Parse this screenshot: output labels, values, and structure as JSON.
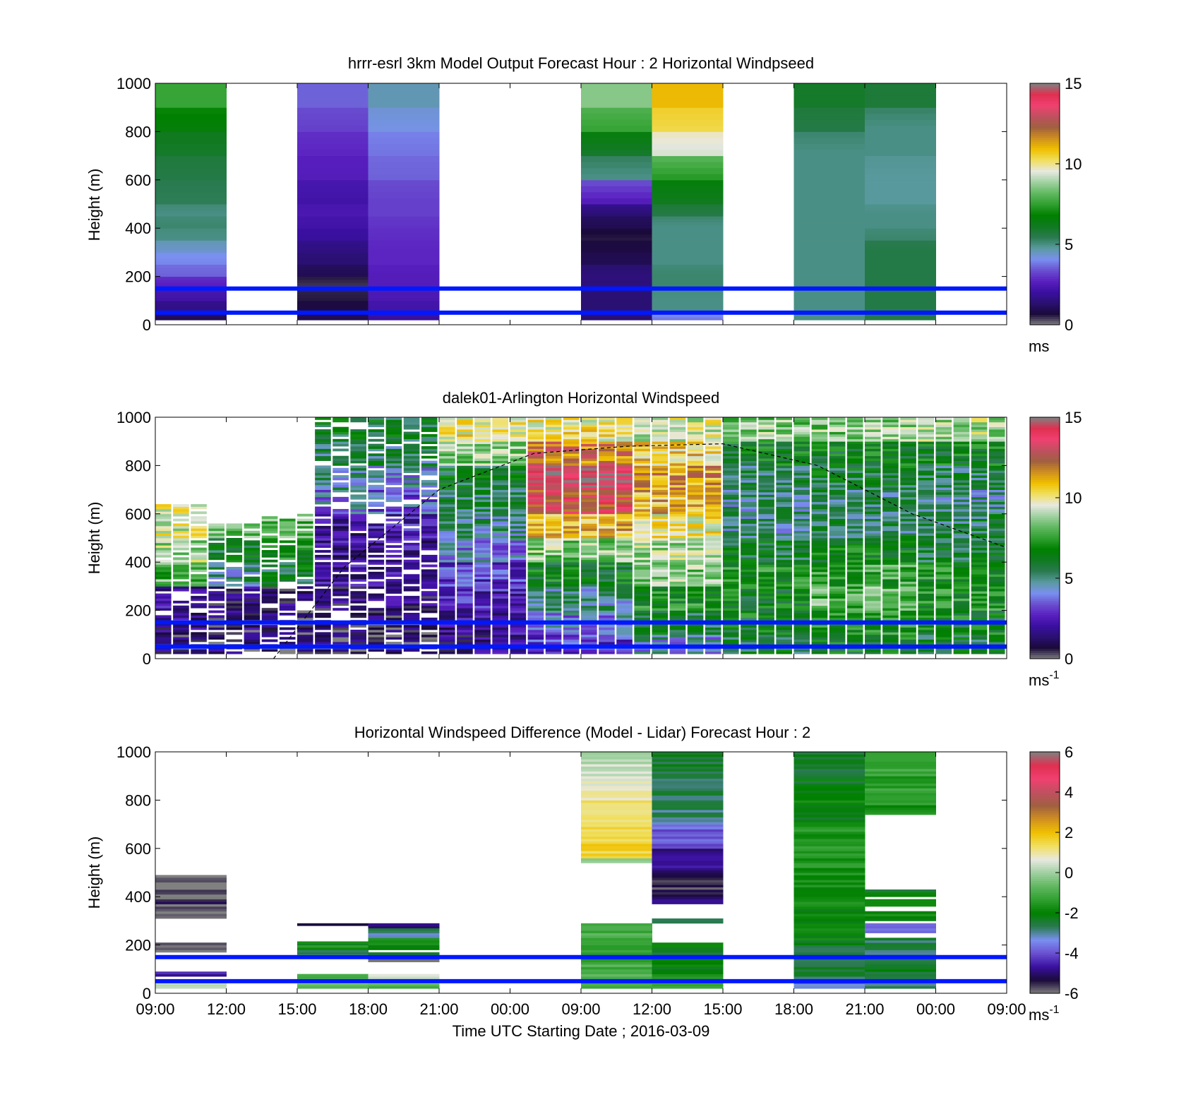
{
  "colors": {
    "windspeed_colormap": [
      "#808080",
      "#1a0a3a",
      "#2a1070",
      "#3a10a0",
      "#5a20c0",
      "#6a50d0",
      "#7a90f0",
      "#5a9aa0",
      "#2a7a50",
      "#107a20",
      "#008000",
      "#30a030",
      "#60b860",
      "#a0d0a0",
      "#e8e8e0",
      "#f0e060",
      "#f0c000",
      "#d09020",
      "#a06040",
      "#c05060",
      "#f04070",
      "#e03050",
      "#808080"
    ],
    "difference_colormap": [
      "#808080",
      "#1a0a3a",
      "#3a10a0",
      "#6a50d0",
      "#7a90f0",
      "#2a7a50",
      "#008000",
      "#30a030",
      "#60b860",
      "#a0d0a0",
      "#e8e8e0",
      "#f0e060",
      "#f0c000",
      "#d09020",
      "#a06040",
      "#c05060",
      "#f04070",
      "#e03050",
      "#808080"
    ],
    "reference_lines": "#0018ff",
    "overlay_curve": "#000000"
  },
  "shared": {
    "x_tick_labels": [
      "09:00",
      "12:00",
      "15:00",
      "18:00",
      "21:00",
      "00:00",
      "09:00",
      "12:00",
      "15:00",
      "18:00",
      "21:00",
      "00:00",
      "09:00"
    ],
    "x_label": "Time UTC  Starting Date ; 2016-03-09",
    "y_label": "Height (m)",
    "y_tick_labels": [
      "0",
      "200",
      "400",
      "600",
      "800",
      "1000"
    ]
  },
  "chart_data": [
    {
      "type": "heatmap",
      "title": "hrrr-esrl 3km Model Output   Forecast Hour : 2 Horizontal Windpseed",
      "ylabel": "Height (m)",
      "ylim": [
        0,
        1000
      ],
      "x_columns": 12,
      "reference_lines_m": [
        50,
        150
      ],
      "colorbar": {
        "ticks": [
          "0",
          "5",
          "10",
          "15"
        ],
        "range": [
          0,
          15
        ],
        "unit": "ms"
      },
      "value_grid_note": "columns = 3-hour model slots, values = windspeed (m/s) per height band",
      "bands_m": [
        [
          20,
          50
        ],
        [
          50,
          100
        ],
        [
          100,
          150
        ],
        [
          150,
          200
        ],
        [
          200,
          250
        ],
        [
          250,
          300
        ],
        [
          300,
          350
        ],
        [
          350,
          400
        ],
        [
          400,
          450
        ],
        [
          450,
          500
        ],
        [
          500,
          600
        ],
        [
          600,
          700
        ],
        [
          700,
          800
        ],
        [
          800,
          900
        ],
        [
          900,
          1000
        ]
      ],
      "columns": [
        {
          "slot": 0,
          "values": [
            1.0,
            1.6,
            2.2,
            2.6,
            3.6,
            4.0,
            4.4,
            5.0,
            5.2,
            5.0,
            5.4,
            5.6,
            6.0,
            6.6,
            7.6
          ]
        },
        {
          "slot": 1,
          "values": null
        },
        {
          "slot": 2,
          "values": [
            1.0,
            0.8,
            0.6,
            0.4,
            1.0,
            1.4,
            1.6,
            2.0,
            2.2,
            2.4,
            2.2,
            2.6,
            2.8,
            3.2,
            3.6
          ]
        },
        {
          "slot": 3,
          "values": [
            2.0,
            2.2,
            2.4,
            2.6,
            2.6,
            2.8,
            2.8,
            2.9,
            3.0,
            3.2,
            3.2,
            3.6,
            3.8,
            4.2,
            4.6
          ]
        },
        {
          "slot": 4,
          "values": null
        },
        {
          "slot": 5,
          "values": null
        },
        {
          "slot": 6,
          "values": [
            1.4,
            1.4,
            1.4,
            1.5,
            1.5,
            1.0,
            0.8,
            0.6,
            1.0,
            1.4,
            2.6,
            5.0,
            6.0,
            7.6,
            8.6
          ]
        },
        {
          "slot": 7,
          "values": [
            3.8,
            5.0,
            5.0,
            5.2,
            5.2,
            5.0,
            5.0,
            5.0,
            5.0,
            5.6,
            6.2,
            7.4,
            9.4,
            10.4,
            11.0
          ]
        },
        {
          "slot": 8,
          "values": null
        },
        {
          "slot": 9,
          "values": [
            5.0,
            5.0,
            5.0,
            5.0,
            5.0,
            5.0,
            5.0,
            5.0,
            5.0,
            5.0,
            5.0,
            5.0,
            5.0,
            5.6,
            6.0
          ]
        },
        {
          "slot": 10,
          "values": [
            5.6,
            5.6,
            5.6,
            5.6,
            5.6,
            5.6,
            5.6,
            5.2,
            5.0,
            5.0,
            4.8,
            4.8,
            5.0,
            5.0,
            5.8
          ]
        },
        {
          "slot": 11,
          "values": null
        }
      ]
    },
    {
      "type": "heatmap",
      "title": "dalek01-Arlington  Horizontal Windspeed",
      "ylabel": "Height (m)",
      "ylim": [
        0,
        1000
      ],
      "reference_lines_m": [
        50,
        150
      ],
      "colorbar": {
        "ticks": [
          "0",
          "5",
          "10",
          "15"
        ],
        "range": [
          0,
          15
        ],
        "unit": "ms",
        "unit_exponent": "-1"
      },
      "overlay_curve": {
        "style": "dashed",
        "points_hours_height": [
          [
            7.5,
            0
          ],
          [
            12,
            380
          ],
          [
            18,
            700
          ],
          [
            24,
            850
          ],
          [
            30,
            880
          ],
          [
            36,
            890
          ],
          [
            42,
            800
          ],
          [
            48,
            600
          ],
          [
            54,
            460
          ]
        ]
      },
      "profile_segments": [
        {
          "t0": 0,
          "t1": 3,
          "top": 640,
          "profile": [
            1.0,
            1.5,
            2.0,
            8.0,
            9.0,
            9.5,
            10.0,
            11.0,
            9.0,
            8.0
          ]
        },
        {
          "t0": 3,
          "t1": 7,
          "top": 560,
          "profile": [
            1.0,
            1.2,
            1.5,
            5.0,
            6.0,
            8.0,
            7.0,
            6.0,
            5.0,
            4.0
          ]
        },
        {
          "t0": 7,
          "t1": 10,
          "top": 700,
          "profile": [
            0.8,
            1.0,
            1.5,
            6.0,
            7.0,
            8.0,
            0,
            0,
            0,
            0
          ]
        },
        {
          "t0": 10,
          "t1": 14,
          "top": 1000,
          "profile": [
            0.8,
            1.0,
            1.5,
            2.0,
            2.0,
            2.0,
            4.0,
            5.0,
            5.5,
            6.0
          ]
        },
        {
          "t0": 14,
          "t1": 18,
          "top": 1000,
          "profile": [
            0.8,
            1.0,
            1.5,
            2.0,
            2.0,
            2.5,
            3.5,
            4.5,
            5.5,
            6.0
          ]
        },
        {
          "t0": 18,
          "t1": 24,
          "top": 1000,
          "profile": [
            1.5,
            2.0,
            2.5,
            3.0,
            4.0,
            5.0,
            5.5,
            6.0,
            8.5,
            10.0
          ]
        },
        {
          "t0": 24,
          "t1": 30,
          "top": 1000,
          "profile": [
            3.0,
            4.0,
            5.0,
            6.5,
            8.5,
            11.0,
            13.0,
            14.0,
            12.0,
            10.0
          ]
        },
        {
          "t0": 30,
          "t1": 36,
          "top": 1000,
          "profile": [
            4.5,
            6.0,
            7.0,
            8.5,
            9.0,
            10.0,
            11.0,
            11.5,
            10.5,
            9.5
          ]
        },
        {
          "t0": 36,
          "t1": 42,
          "top": 1000,
          "profile": [
            6.0,
            6.5,
            6.5,
            7.0,
            6.0,
            5.0,
            5.0,
            5.5,
            6.5,
            8.5
          ]
        },
        {
          "t0": 42,
          "t1": 48,
          "top": 1000,
          "profile": [
            6.5,
            7.0,
            8.0,
            7.5,
            6.5,
            5.5,
            5.5,
            6.0,
            6.5,
            8.5
          ]
        },
        {
          "t0": 48,
          "t1": 54,
          "top": 1000,
          "profile": [
            6.0,
            6.5,
            7.0,
            7.0,
            6.0,
            5.5,
            5.0,
            5.5,
            6.5,
            9.0
          ]
        }
      ]
    },
    {
      "type": "heatmap",
      "title": "Horizontal Windspeed Difference (Model - Lidar) Forecast Hour : 2",
      "ylabel": "Height (m)",
      "xlabel": "Time UTC  Starting Date ; 2016-03-09",
      "ylim": [
        0,
        1000
      ],
      "reference_lines_m": [
        50,
        150
      ],
      "colorbar": {
        "ticks": [
          "-6",
          "-4",
          "-2",
          "0",
          "2",
          "4",
          "6"
        ],
        "range": [
          -6,
          6
        ],
        "unit": "ms",
        "unit_exponent": "-1"
      },
      "columns": [
        {
          "slot": 0,
          "blocks": [
            [
              20,
              40,
              0.5
            ],
            [
              70,
              90,
              -4.5
            ],
            [
              170,
              210,
              -6
            ],
            [
              310,
              370,
              -6
            ],
            [
              370,
              390,
              -5.5
            ],
            [
              390,
              410,
              -6
            ],
            [
              410,
              430,
              -5.5
            ],
            [
              430,
              490,
              -6
            ]
          ]
        },
        {
          "slot": 2,
          "blocks": [
            [
              20,
              40,
              -0.8
            ],
            [
              60,
              80,
              -1.2
            ],
            [
              160,
              180,
              -2.5
            ],
            [
              180,
              200,
              -1.5
            ],
            [
              200,
              215,
              -2.0
            ],
            [
              280,
              290,
              -5.5
            ]
          ]
        },
        {
          "slot": 3,
          "blocks": [
            [
              20,
              40,
              -0.8
            ],
            [
              40,
              60,
              0.3
            ],
            [
              60,
              80,
              0.6
            ],
            [
              130,
              150,
              -6
            ],
            [
              150,
              170,
              -2.5
            ],
            [
              180,
              200,
              -2.0
            ],
            [
              200,
              230,
              -1.5
            ],
            [
              230,
              250,
              -3.0
            ],
            [
              250,
              270,
              -2.5
            ],
            [
              270,
              290,
              -5.0
            ]
          ]
        },
        {
          "slot": 6,
          "blocks": [
            [
              20,
              60,
              -1.2
            ],
            [
              60,
              120,
              -1.0
            ],
            [
              120,
              180,
              -1.4
            ],
            [
              180,
              230,
              -1.2
            ],
            [
              230,
              290,
              -1.0
            ],
            [
              540,
              560,
              -0.2
            ],
            [
              560,
              700,
              1.6
            ],
            [
              700,
              800,
              1.2
            ],
            [
              800,
              900,
              0.8
            ],
            [
              900,
              960,
              0.3
            ],
            [
              960,
              1000,
              0.0
            ]
          ]
        },
        {
          "slot": 7,
          "blocks": [
            [
              20,
              60,
              -1.4
            ],
            [
              60,
              100,
              -1.8
            ],
            [
              100,
              150,
              -2.0
            ],
            [
              150,
              210,
              -2.2
            ],
            [
              290,
              310,
              -3.0
            ],
            [
              370,
              400,
              -5.0
            ],
            [
              400,
              500,
              -5.5
            ],
            [
              500,
              600,
              -4.8
            ],
            [
              600,
              700,
              -3.8
            ],
            [
              700,
              800,
              -2.8
            ],
            [
              800,
              900,
              -2.6
            ],
            [
              900,
              1000,
              -2.4
            ]
          ]
        },
        {
          "slot": 9,
          "blocks": [
            [
              20,
              60,
              -3.0
            ],
            [
              60,
              120,
              -2.6
            ],
            [
              120,
              200,
              -2.4
            ],
            [
              200,
              350,
              -2.0
            ],
            [
              350,
              500,
              -1.8
            ],
            [
              500,
              700,
              -1.6
            ],
            [
              700,
              800,
              -2.0
            ],
            [
              800,
              900,
              -2.2
            ],
            [
              900,
              1000,
              -2.4
            ]
          ]
        },
        {
          "slot": 10,
          "blocks": [
            [
              20,
              60,
              -2.6
            ],
            [
              60,
              140,
              -2.4
            ],
            [
              140,
              230,
              -2.6
            ],
            [
              250,
              290,
              -3.5
            ],
            [
              300,
              340,
              -1.8
            ],
            [
              360,
              390,
              -1.6
            ],
            [
              400,
              430,
              -2.2
            ],
            [
              740,
              800,
              -1.6
            ],
            [
              800,
              900,
              -1.4
            ],
            [
              900,
              960,
              -1.2
            ],
            [
              960,
              1000,
              -1.0
            ]
          ]
        }
      ]
    }
  ]
}
